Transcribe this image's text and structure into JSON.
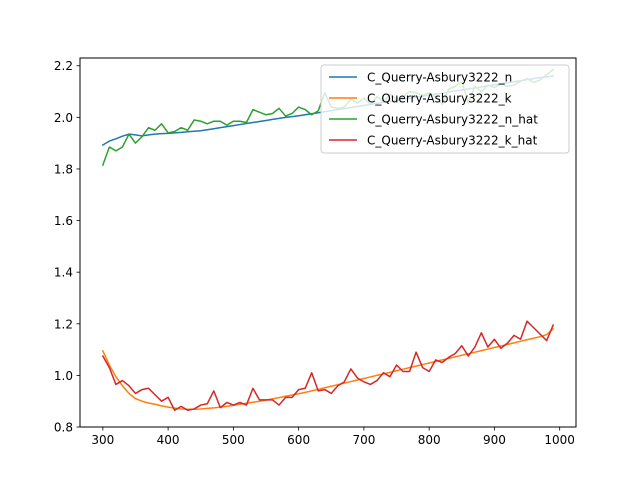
{
  "chart_data": {
    "type": "line",
    "title": "",
    "xlabel": "",
    "ylabel": "",
    "xlim": [
      265,
      1025
    ],
    "ylim": [
      0.8,
      2.23
    ],
    "xticks": [
      300,
      400,
      500,
      600,
      700,
      800,
      900,
      1000
    ],
    "yticks": [
      0.8,
      1.0,
      1.2,
      1.4,
      1.6,
      1.8,
      2.0,
      2.2
    ],
    "xtick_labels": [
      "300",
      "400",
      "500",
      "600",
      "700",
      "800",
      "900",
      "1000"
    ],
    "ytick_labels": [
      "0.8",
      "1.0",
      "1.2",
      "1.4",
      "1.6",
      "1.8",
      "2.0",
      "2.2"
    ],
    "grid": false,
    "legend_position": "top-right",
    "x": [
      300,
      310,
      320,
      330,
      340,
      350,
      360,
      370,
      380,
      390,
      400,
      410,
      420,
      430,
      440,
      450,
      460,
      470,
      480,
      490,
      500,
      510,
      520,
      530,
      540,
      550,
      560,
      570,
      580,
      590,
      600,
      610,
      620,
      630,
      640,
      650,
      660,
      670,
      680,
      690,
      700,
      710,
      720,
      730,
      740,
      750,
      760,
      770,
      780,
      790,
      800,
      810,
      820,
      830,
      840,
      850,
      860,
      870,
      880,
      890,
      900,
      910,
      920,
      930,
      940,
      950,
      960,
      970,
      980,
      990
    ],
    "series": [
      {
        "name": "C_Querry-Asbury3222_n",
        "color": "#1f77b4",
        "values": [
          1.893,
          1.908,
          1.917,
          1.927,
          1.935,
          1.932,
          1.928,
          1.932,
          1.935,
          1.937,
          1.938,
          1.94,
          1.942,
          1.944,
          1.946,
          1.948,
          1.952,
          1.956,
          1.96,
          1.964,
          1.968,
          1.972,
          1.976,
          1.98,
          1.984,
          1.988,
          1.992,
          1.996,
          2.0,
          2.003,
          2.006,
          2.01,
          2.014,
          2.018,
          2.022,
          2.026,
          2.03,
          2.034,
          2.038,
          2.042,
          2.046,
          2.05,
          2.054,
          2.058,
          2.062,
          2.066,
          2.07,
          2.074,
          2.078,
          2.082,
          2.086,
          2.09,
          2.094,
          2.098,
          2.102,
          2.106,
          2.11,
          2.114,
          2.118,
          2.122,
          2.126,
          2.13,
          2.134,
          2.138,
          2.142,
          2.146,
          2.15,
          2.154,
          2.157,
          2.16
        ]
      },
      {
        "name": "C_Querry-Asbury3222_k",
        "color": "#ff7f0e",
        "values": [
          1.095,
          1.04,
          0.995,
          0.96,
          0.93,
          0.91,
          0.9,
          0.893,
          0.888,
          0.882,
          0.877,
          0.873,
          0.87,
          0.869,
          0.869,
          0.87,
          0.872,
          0.874,
          0.877,
          0.88,
          0.884,
          0.888,
          0.892,
          0.896,
          0.9,
          0.904,
          0.909,
          0.914,
          0.919,
          0.924,
          0.929,
          0.934,
          0.94,
          0.946,
          0.952,
          0.958,
          0.964,
          0.97,
          0.976,
          0.982,
          0.988,
          0.994,
          1.0,
          1.006,
          1.012,
          1.018,
          1.024,
          1.03,
          1.036,
          1.042,
          1.048,
          1.054,
          1.06,
          1.066,
          1.072,
          1.078,
          1.084,
          1.09,
          1.096,
          1.102,
          1.108,
          1.114,
          1.12,
          1.126,
          1.132,
          1.138,
          1.144,
          1.15,
          1.158,
          1.18
        ]
      },
      {
        "name": "C_Querry-Asbury3222_n_hat",
        "color": "#2ca02c",
        "values": [
          1.815,
          1.885,
          1.87,
          1.885,
          1.935,
          1.9,
          1.925,
          1.96,
          1.95,
          1.975,
          1.94,
          1.945,
          1.96,
          1.95,
          1.99,
          1.985,
          1.975,
          1.985,
          1.985,
          1.97,
          1.985,
          1.985,
          1.98,
          2.03,
          2.02,
          2.01,
          2.015,
          2.035,
          2.005,
          2.015,
          2.04,
          2.03,
          2.01,
          2.025,
          2.095,
          2.04,
          2.035,
          2.04,
          2.07,
          2.055,
          2.075,
          2.05,
          2.08,
          2.06,
          2.09,
          2.07,
          2.08,
          2.1,
          2.095,
          2.085,
          2.095,
          2.08,
          2.05,
          2.11,
          2.12,
          2.14,
          2.055,
          2.12,
          2.1,
          2.125,
          2.115,
          2.13,
          2.12,
          2.125,
          2.14,
          2.15,
          2.135,
          2.145,
          2.165,
          2.185
        ]
      },
      {
        "name": "C_Querry-Asbury3222_k_hat",
        "color": "#d62728",
        "values": [
          1.075,
          1.03,
          0.965,
          0.98,
          0.96,
          0.93,
          0.945,
          0.95,
          0.925,
          0.9,
          0.915,
          0.865,
          0.88,
          0.865,
          0.87,
          0.885,
          0.89,
          0.94,
          0.875,
          0.895,
          0.885,
          0.895,
          0.885,
          0.95,
          0.905,
          0.905,
          0.905,
          0.885,
          0.915,
          0.915,
          0.945,
          0.95,
          1.01,
          0.94,
          0.945,
          0.93,
          0.96,
          0.975,
          1.025,
          0.99,
          0.975,
          0.965,
          0.98,
          1.01,
          0.995,
          1.04,
          1.015,
          1.015,
          1.09,
          1.03,
          1.015,
          1.06,
          1.05,
          1.07,
          1.085,
          1.115,
          1.075,
          1.11,
          1.165,
          1.11,
          1.14,
          1.105,
          1.125,
          1.155,
          1.14,
          1.21,
          1.185,
          1.16,
          1.135,
          1.195
        ]
      }
    ]
  }
}
